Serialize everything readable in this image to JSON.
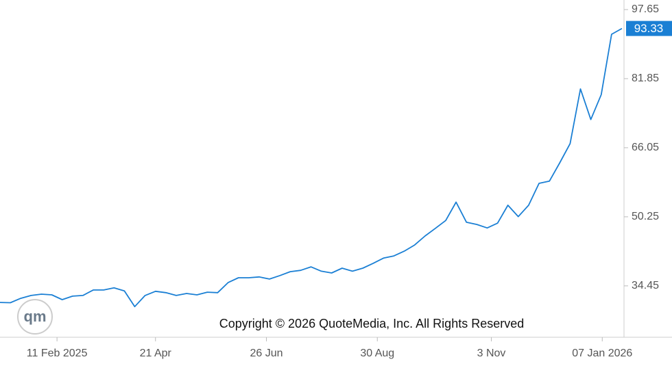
{
  "chart_data": {
    "type": "line",
    "series": [
      {
        "color": "#1a7fd4",
        "values": [
          30.65,
          30.6,
          31.6,
          32.25,
          32.55,
          32.4,
          31.3,
          32.1,
          32.25,
          33.5,
          33.5,
          34.0,
          33.3,
          29.7,
          32.25,
          33.2,
          32.9,
          32.25,
          32.7,
          32.4,
          33.0,
          32.9,
          35.2,
          36.3,
          36.3,
          36.5,
          36.0,
          36.8,
          37.7,
          38.0,
          38.8,
          37.8,
          37.4,
          38.5,
          37.8,
          38.5,
          39.6,
          40.8,
          41.3,
          42.4,
          43.8,
          45.85,
          47.6,
          49.4,
          53.6,
          49.0,
          48.5,
          47.7,
          48.8,
          52.9,
          50.3,
          52.9,
          57.9,
          58.4,
          62.6,
          67.0,
          79.5,
          72.5,
          78.2,
          92.0,
          93.33
        ]
      }
    ],
    "xlim": [
      0,
      60
    ],
    "xticks": [
      {
        "value": 5.5,
        "label": "11 Feb 2025"
      },
      {
        "value": 15.0,
        "label": "21 Apr"
      },
      {
        "value": 25.7,
        "label": "26 Jun"
      },
      {
        "value": 36.4,
        "label": "30 Aug"
      },
      {
        "value": 47.4,
        "label": "3 Nov"
      },
      {
        "value": 58.1,
        "label": "07 Jan 2026"
      }
    ],
    "ylim": [
      22.69,
      99.84
    ],
    "yticks": [
      34.45,
      50.25,
      66.05,
      81.85,
      97.65
    ],
    "annotation": "Copyright © 2026 QuoteMedia, Inc. All Rights Reserved",
    "logo": "qm"
  }
}
